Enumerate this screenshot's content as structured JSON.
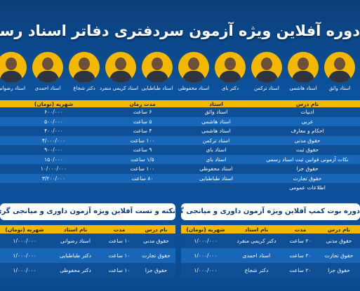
{
  "header": {
    "title": "دوره آفلاین ویژه آزمون سردفتری دفاتر اسناد رسمی"
  },
  "teachers": [
    "استاد واثق",
    "استاد هاشمی",
    "استاد ترکمن",
    "دکتر بای",
    "استاد محفوظی",
    "استاد طباطبایی",
    "استاد کریمی منفرد",
    "دکتر شجاع",
    "استاد احمدی",
    "استاد رضوانی"
  ],
  "main_table": {
    "columns": [
      "نام درس",
      "استاد",
      "مدت زمان",
      "شهریه (تومان)"
    ],
    "rows": [
      [
        "ادبیات",
        "استاد واثق",
        "۶ ساعت",
        "۶۰۰/۰۰۰"
      ],
      [
        "عربی",
        "استاد هاشمی",
        "۵ ساعت",
        "۵۰۰/۰۰۰"
      ],
      [
        "احکام و معارف",
        "استاد هاشمی",
        "۴ ساعت",
        "۴۰۰/۰۰۰"
      ],
      [
        "حقوق مدنی",
        "استاد ترکمن",
        "۱۰۰ ساعت",
        "۴/۰۰۰/۰۰۰"
      ],
      [
        "حقوق ثبت",
        "استاد بای",
        "۹ ساعت",
        "۹۰۰/۰۰۰"
      ],
      [
        "نکات آزمونی قوانین ثبت اسناد رسمی",
        "استاد بای",
        "۱/۵ ساعت",
        "۱۵۰/۰۰۰"
      ],
      [
        "حقوق جزا",
        "استاد محفوظی",
        "۱۰۰ ساعت",
        "۱۰/۰۰۰/۰۰۰"
      ],
      [
        "حقوق تجارت",
        "استاد طباطبایی",
        "۸۰ ساعت",
        "۳/۲۰۰/۰۰۰"
      ],
      [
        "اطلاعات عمومی",
        "",
        "",
        ""
      ]
    ]
  },
  "bootcamp": {
    "title": "دوره بوت کمپ آفلاین ویژه آزمون داوری و میانجی گری",
    "columns": [
      "نام درس",
      "مدت",
      "نام استاد",
      "شهریه (تومان)"
    ],
    "rows": [
      [
        "حقوق مدنی",
        "۲۰ ساعت",
        "دکتر کریمی منفرد",
        "۱/۰۰۰/۰۰۰"
      ],
      [
        "حقوق تجارت",
        "۲۰ ساعت",
        "استاد احمدی",
        "۱/۰۰۰/۰۰۰"
      ],
      [
        "حقوق جزا",
        "۲۰ ساعت",
        "دکتر شجاع",
        "۱/۰۰۰/۰۰۰"
      ]
    ]
  },
  "tests": {
    "title": "نکته و تست آفلاین ویژه آزمون داوری و میانجی گری",
    "columns": [
      "نام درس",
      "مدت",
      "نام استاد",
      "شهریه (تومان)"
    ],
    "rows": [
      [
        "حقوق مدنی",
        "۱۰ ساعت",
        "استاد رضوانی",
        "۱/۰۰۰/۰۰۰"
      ],
      [
        "حقوق تجارت",
        "۱۰ ساعت",
        "دکتر طباطبایی",
        "۱/۰۰۰/۰۰۰"
      ],
      [
        "حقوق جزا",
        "۱۰ ساعت",
        "دکتر محفوظی",
        "۱/۰۰۰/۰۰۰"
      ]
    ]
  }
}
